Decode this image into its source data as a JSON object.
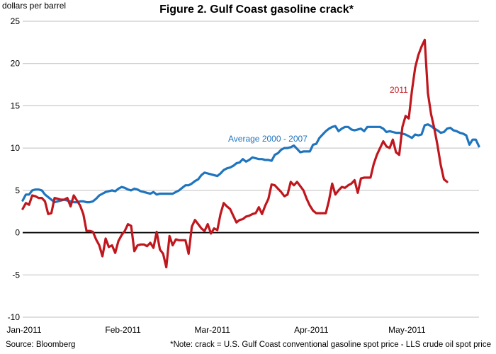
{
  "chart_data": {
    "type": "line",
    "title": "Figure 2. Gulf Coast gasoline crack*",
    "ylabel": "dollars per barrel",
    "xlabel": "",
    "ylim": [
      -10,
      25
    ],
    "yticks": [
      25,
      20,
      15,
      10,
      5,
      0,
      -5,
      -10
    ],
    "xticks": [
      {
        "label": "Jan-2011",
        "x": 0
      },
      {
        "label": "Feb-2011",
        "x": 31
      },
      {
        "label": "Mar-2011",
        "x": 59
      },
      {
        "label": "Apr-2011",
        "x": 90
      },
      {
        "label": "May-2011",
        "x": 120
      }
    ],
    "grid": {
      "horizontal": true,
      "vertical": false
    },
    "zero_line": true,
    "series": [
      {
        "name": "Average 2000 - 2007",
        "color": "#1F74BE",
        "points": [
          [
            0,
            3.8
          ],
          [
            1,
            4.5
          ],
          [
            2,
            4.5
          ],
          [
            3,
            5.0
          ],
          [
            4,
            5.1
          ],
          [
            5,
            5.1
          ],
          [
            6,
            5.0
          ],
          [
            7,
            4.5
          ],
          [
            8,
            4.2
          ],
          [
            9,
            3.9
          ],
          [
            10,
            3.6
          ],
          [
            11,
            3.7
          ],
          [
            12,
            3.8
          ],
          [
            13,
            3.9
          ],
          [
            14,
            3.8
          ],
          [
            15,
            3.7
          ],
          [
            16,
            3.6
          ],
          [
            17,
            3.6
          ],
          [
            18,
            3.7
          ],
          [
            19,
            3.7
          ],
          [
            20,
            3.6
          ],
          [
            21,
            3.6
          ],
          [
            22,
            3.7
          ],
          [
            23,
            4.0
          ],
          [
            24,
            4.4
          ],
          [
            25,
            4.6
          ],
          [
            26,
            4.8
          ],
          [
            27,
            4.9
          ],
          [
            28,
            5.0
          ],
          [
            29,
            4.9
          ],
          [
            30,
            5.2
          ],
          [
            31,
            5.4
          ],
          [
            32,
            5.3
          ],
          [
            33,
            5.1
          ],
          [
            34,
            5.0
          ],
          [
            35,
            5.2
          ],
          [
            36,
            5.1
          ],
          [
            37,
            4.9
          ],
          [
            38,
            4.8
          ],
          [
            39,
            4.7
          ],
          [
            40,
            4.6
          ],
          [
            41,
            4.8
          ],
          [
            42,
            4.5
          ],
          [
            43,
            4.6
          ],
          [
            44,
            4.6
          ],
          [
            45,
            4.6
          ],
          [
            46,
            4.6
          ],
          [
            47,
            4.6
          ],
          [
            48,
            4.8
          ],
          [
            49,
            5.0
          ],
          [
            50,
            5.3
          ],
          [
            51,
            5.6
          ],
          [
            52,
            5.6
          ],
          [
            53,
            5.8
          ],
          [
            54,
            6.1
          ],
          [
            55,
            6.3
          ],
          [
            56,
            6.8
          ],
          [
            57,
            7.1
          ],
          [
            58,
            7.0
          ],
          [
            59,
            6.9
          ],
          [
            60,
            6.8
          ],
          [
            61,
            6.7
          ],
          [
            62,
            7.0
          ],
          [
            63,
            7.4
          ],
          [
            64,
            7.6
          ],
          [
            65,
            7.7
          ],
          [
            66,
            7.9
          ],
          [
            67,
            8.2
          ],
          [
            68,
            8.3
          ],
          [
            69,
            8.7
          ],
          [
            70,
            8.4
          ],
          [
            71,
            8.6
          ],
          [
            72,
            8.9
          ],
          [
            73,
            8.8
          ],
          [
            74,
            8.7
          ],
          [
            75,
            8.7
          ],
          [
            76,
            8.6
          ],
          [
            77,
            8.6
          ],
          [
            78,
            8.5
          ],
          [
            79,
            9.2
          ],
          [
            80,
            9.4
          ],
          [
            81,
            9.8
          ],
          [
            82,
            10.0
          ],
          [
            83,
            10.0
          ],
          [
            84,
            10.1
          ],
          [
            85,
            10.3
          ],
          [
            86,
            9.9
          ],
          [
            87,
            9.5
          ],
          [
            88,
            9.6
          ],
          [
            89,
            9.6
          ],
          [
            90,
            9.6
          ],
          [
            91,
            10.4
          ],
          [
            92,
            10.5
          ],
          [
            93,
            11.2
          ],
          [
            94,
            11.6
          ],
          [
            95,
            12.0
          ],
          [
            96,
            12.3
          ],
          [
            97,
            12.5
          ],
          [
            98,
            12.6
          ],
          [
            99,
            12.0
          ],
          [
            100,
            12.3
          ],
          [
            101,
            12.5
          ],
          [
            102,
            12.5
          ],
          [
            103,
            12.2
          ],
          [
            104,
            12.1
          ],
          [
            105,
            12.2
          ],
          [
            106,
            12.3
          ],
          [
            107,
            12.0
          ],
          [
            108,
            12.5
          ],
          [
            109,
            12.5
          ],
          [
            110,
            12.5
          ],
          [
            111,
            12.5
          ],
          [
            112,
            12.5
          ],
          [
            113,
            12.3
          ],
          [
            114,
            11.9
          ],
          [
            115,
            12.0
          ],
          [
            116,
            11.9
          ],
          [
            117,
            11.8
          ],
          [
            118,
            11.8
          ],
          [
            119,
            11.7
          ],
          [
            120,
            11.6
          ],
          [
            121,
            11.4
          ],
          [
            122,
            11.2
          ],
          [
            123,
            11.6
          ],
          [
            124,
            11.5
          ],
          [
            125,
            11.6
          ],
          [
            126,
            12.7
          ],
          [
            127,
            12.8
          ],
          [
            128,
            12.6
          ],
          [
            129,
            12.3
          ],
          [
            130,
            12.1
          ],
          [
            131,
            11.8
          ],
          [
            132,
            11.9
          ],
          [
            133,
            12.3
          ],
          [
            134,
            12.4
          ],
          [
            135,
            12.1
          ],
          [
            136,
            12.0
          ],
          [
            137,
            11.8
          ],
          [
            138,
            11.7
          ],
          [
            139,
            11.5
          ],
          [
            140,
            10.4
          ],
          [
            141,
            11.0
          ],
          [
            142,
            11.0
          ],
          [
            143,
            10.2
          ]
        ]
      },
      {
        "name": "2011",
        "color": "#C0161D",
        "points": [
          [
            0,
            2.8
          ],
          [
            1,
            3.5
          ],
          [
            2,
            3.3
          ],
          [
            3,
            4.4
          ],
          [
            4,
            4.3
          ],
          [
            5,
            4.1
          ],
          [
            6,
            4.1
          ],
          [
            7,
            3.7
          ],
          [
            8,
            2.2
          ],
          [
            9,
            2.3
          ],
          [
            10,
            4.1
          ],
          [
            11,
            4.0
          ],
          [
            12,
            3.9
          ],
          [
            13,
            3.9
          ],
          [
            14,
            4.1
          ],
          [
            15,
            3.1
          ],
          [
            16,
            4.4
          ],
          [
            17,
            3.8
          ],
          [
            18,
            3.2
          ],
          [
            19,
            2.2
          ],
          [
            20,
            0.2
          ],
          [
            21,
            0.2
          ],
          [
            22,
            0.1
          ],
          [
            23,
            -0.8
          ],
          [
            24,
            -1.5
          ],
          [
            25,
            -2.8
          ],
          [
            26,
            -0.7
          ],
          [
            27,
            -1.7
          ],
          [
            28,
            -1.5
          ],
          [
            29,
            -2.4
          ],
          [
            30,
            -1.0
          ],
          [
            31,
            -0.3
          ],
          [
            32,
            0.2
          ],
          [
            33,
            1.0
          ],
          [
            34,
            0.8
          ],
          [
            35,
            -2.2
          ],
          [
            36,
            -1.5
          ],
          [
            37,
            -1.4
          ],
          [
            38,
            -1.4
          ],
          [
            39,
            -1.6
          ],
          [
            40,
            -1.2
          ],
          [
            41,
            -1.8
          ],
          [
            42,
            0.1
          ],
          [
            43,
            -2.0
          ],
          [
            44,
            -2.5
          ],
          [
            45,
            -4.1
          ],
          [
            46,
            -0.4
          ],
          [
            47,
            -1.5
          ],
          [
            48,
            -0.8
          ],
          [
            49,
            -0.9
          ],
          [
            50,
            -0.9
          ],
          [
            51,
            -0.9
          ],
          [
            52,
            -2.5
          ],
          [
            53,
            0.7
          ],
          [
            54,
            1.5
          ],
          [
            55,
            1.0
          ],
          [
            56,
            0.5
          ],
          [
            57,
            0.2
          ],
          [
            58,
            1.0
          ],
          [
            59,
            -0.1
          ],
          [
            60,
            0.5
          ],
          [
            61,
            0.3
          ],
          [
            62,
            2.2
          ],
          [
            63,
            3.5
          ],
          [
            64,
            3.1
          ],
          [
            65,
            2.8
          ],
          [
            66,
            2.0
          ],
          [
            67,
            1.2
          ],
          [
            68,
            1.5
          ],
          [
            69,
            1.6
          ],
          [
            70,
            1.9
          ],
          [
            71,
            2.0
          ],
          [
            72,
            2.2
          ],
          [
            73,
            2.3
          ],
          [
            74,
            3.0
          ],
          [
            75,
            2.2
          ],
          [
            76,
            3.2
          ],
          [
            77,
            4.0
          ],
          [
            78,
            5.7
          ],
          [
            79,
            5.6
          ],
          [
            80,
            5.2
          ],
          [
            81,
            4.8
          ],
          [
            82,
            4.3
          ],
          [
            83,
            4.5
          ],
          [
            84,
            6.0
          ],
          [
            85,
            5.6
          ],
          [
            86,
            6.0
          ],
          [
            87,
            5.5
          ],
          [
            88,
            5.0
          ],
          [
            89,
            4.0
          ],
          [
            90,
            3.2
          ],
          [
            91,
            2.6
          ],
          [
            92,
            2.3
          ],
          [
            93,
            2.3
          ],
          [
            94,
            2.3
          ],
          [
            95,
            2.3
          ],
          [
            96,
            3.8
          ],
          [
            97,
            5.8
          ],
          [
            98,
            4.5
          ],
          [
            99,
            5.0
          ],
          [
            100,
            5.4
          ],
          [
            101,
            5.3
          ],
          [
            102,
            5.6
          ],
          [
            103,
            5.8
          ],
          [
            104,
            6.2
          ],
          [
            105,
            4.7
          ],
          [
            106,
            6.4
          ],
          [
            107,
            6.5
          ],
          [
            108,
            6.5
          ],
          [
            109,
            6.5
          ],
          [
            110,
            8.1
          ],
          [
            111,
            9.2
          ],
          [
            112,
            10.0
          ],
          [
            113,
            10.8
          ],
          [
            114,
            10.2
          ],
          [
            115,
            10.0
          ],
          [
            116,
            11.0
          ],
          [
            117,
            9.5
          ],
          [
            118,
            9.2
          ],
          [
            119,
            12.5
          ],
          [
            120,
            13.8
          ],
          [
            121,
            13.5
          ],
          [
            122,
            16.8
          ],
          [
            123,
            19.5
          ],
          [
            124,
            21.0
          ],
          [
            125,
            22.0
          ],
          [
            126,
            22.8
          ],
          [
            127,
            16.5
          ],
          [
            128,
            14.0
          ],
          [
            129,
            12.3
          ],
          [
            130,
            10.3
          ],
          [
            131,
            8.0
          ],
          [
            132,
            6.3
          ],
          [
            133,
            6.0
          ]
        ]
      }
    ],
    "annotations": [
      {
        "text": "Average 2000 - 2007",
        "series": 0
      },
      {
        "text": "2011",
        "series": 1
      }
    ]
  },
  "footer": {
    "source": "Source: Bloomberg",
    "note": "*Note: crack = U.S. Gulf Coast conventional gasoline spot price - LLS crude oil spot price"
  }
}
